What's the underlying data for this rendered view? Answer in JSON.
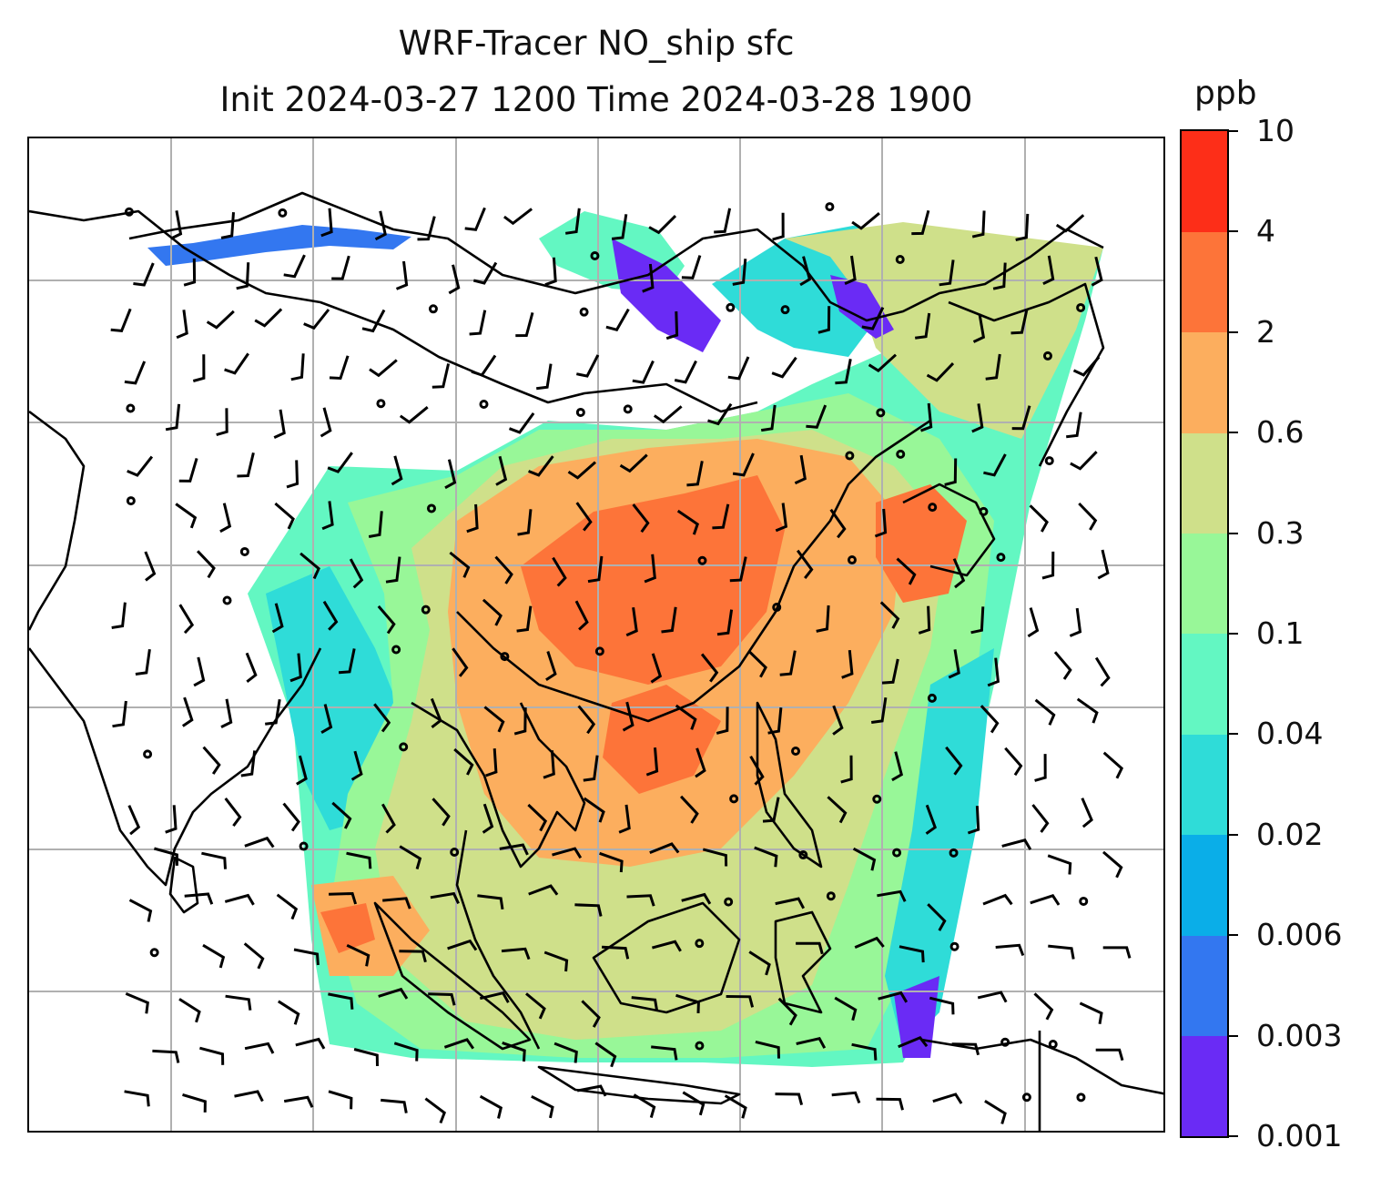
{
  "title": {
    "line1": "WRF-Tracer NO_ship sfc",
    "line2": "Init 2024-03-27 1200 Time 2024-03-28 1900"
  },
  "colorbar": {
    "unit": "ppb",
    "levels": [
      "0.001",
      "0.003",
      "0.006",
      "0.02",
      "0.04",
      "0.1",
      "0.3",
      "0.6",
      "2",
      "4",
      "10"
    ],
    "colors": [
      "#6a2bf5",
      "#3377f0",
      "#0aaee8",
      "#2fdcd8",
      "#63f7c2",
      "#98f798",
      "#cfe08a",
      "#fcae5e",
      "#fd7439",
      "#fd2e18"
    ]
  },
  "map": {
    "gridlines": "on",
    "coastlines": "on",
    "wind_barbs": "on"
  }
}
